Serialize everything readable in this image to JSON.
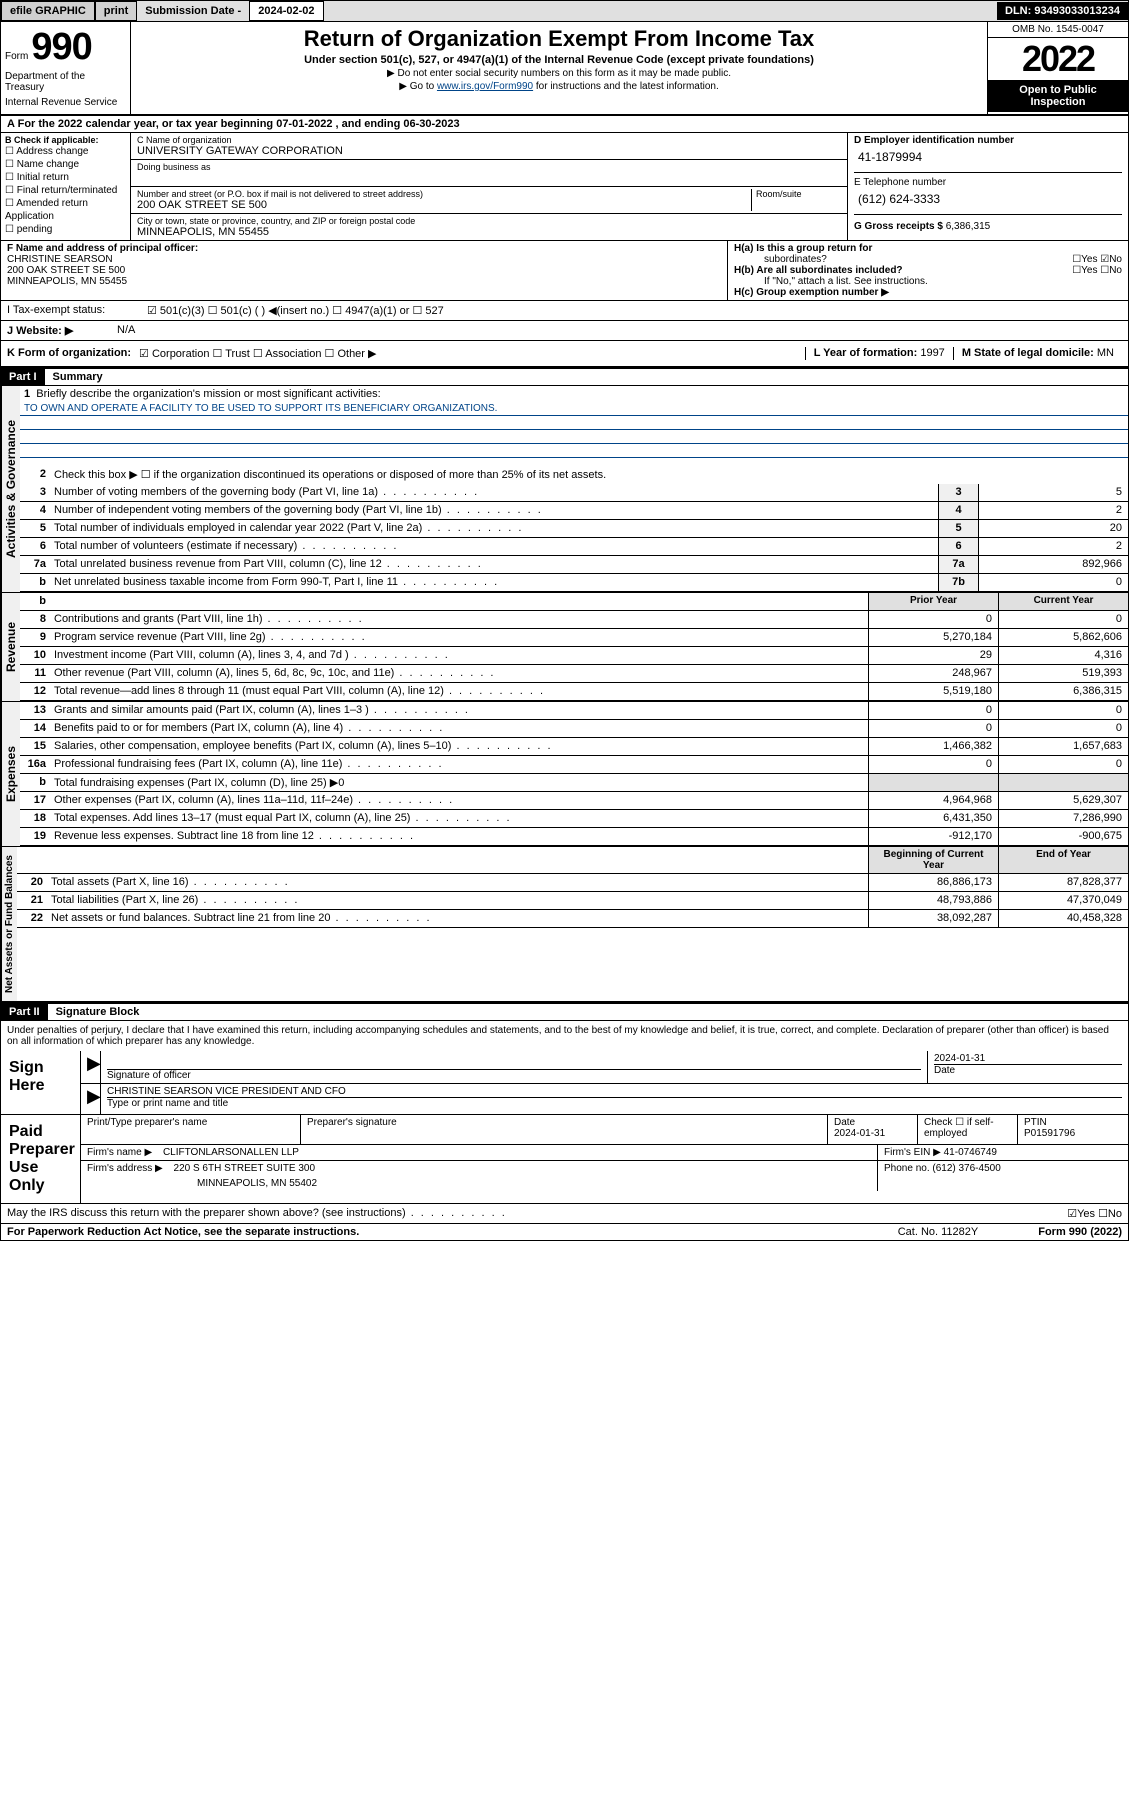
{
  "topbar": {
    "efile": "efile GRAPHIC",
    "print": "print",
    "sub_lbl": "Submission Date - ",
    "sub_date": "2024-02-02",
    "dln": "DLN: 93493033013234"
  },
  "header": {
    "form": "Form",
    "num": "990",
    "dept": "Department of the Treasury",
    "irs": "Internal Revenue Service",
    "title": "Return of Organization Exempt From Income Tax",
    "subtitle": "Under section 501(c), 527, or 4947(a)(1) of the Internal Revenue Code (except private foundations)",
    "note1": "▶ Do not enter social security numbers on this form as it may be made public.",
    "note2a": "▶ Go to ",
    "note2b": "www.irs.gov/Form990",
    "note2c": " for instructions and the latest information.",
    "omb": "OMB No. 1545-0047",
    "year": "2022",
    "inspect": "Open to Public Inspection"
  },
  "line_a": "For the 2022 calendar year, or tax year beginning 07-01-2022   , and ending 06-30-2023",
  "col_b": {
    "lbl": "B Check if applicable:",
    "opts": [
      "☐ Address change",
      "☐ Name change",
      "☐ Initial return",
      "☐ Final return/terminated",
      "☐ Amended return",
      "   Application",
      "☐ pending"
    ]
  },
  "col_c": {
    "name_lbl": "C Name of organization",
    "name": "UNIVERSITY GATEWAY CORPORATION",
    "dba_lbl": "Doing business as",
    "addr_lbl": "Number and street (or P.O. box if mail is not delivered to street address)",
    "addr": "200 OAK STREET SE 500",
    "room_lbl": "Room/suite",
    "city_lbl": "City or town, state or province, country, and ZIP or foreign postal code",
    "city": "MINNEAPOLIS, MN  55455"
  },
  "col_d": {
    "lbl": "D Employer identification number",
    "ein": "41-1879994",
    "tel_lbl": "E Telephone number",
    "tel": "(612) 624-3333",
    "gross_lbl": "G Gross receipts $ ",
    "gross": "6,386,315"
  },
  "f": {
    "lbl": "F  Name and address of principal officer:",
    "name": "CHRISTINE SEARSON",
    "addr1": "200 OAK STREET SE 500",
    "addr2": "MINNEAPOLIS, MN  55455"
  },
  "h": {
    "a": "H(a)  Is this a group return for",
    "a2": "subordinates?",
    "a_ans": "☐Yes ☑No",
    "b": "H(b)  Are all subordinates included?",
    "b_ans": "☐Yes ☐No",
    "b_note": "If \"No,\" attach a list. See instructions.",
    "c": "H(c)  Group exemption number ▶"
  },
  "i": {
    "lbl": "I     Tax-exempt status:",
    "opts": "☑ 501(c)(3)    ☐  501(c) (  ) ◀(insert no.)      ☐ 4947(a)(1) or  ☐ 527"
  },
  "j": {
    "lbl": "J     Website: ▶",
    "val": "N/A"
  },
  "k": {
    "lbl": "K Form of organization:",
    "opts": "☑ Corporation  ☐ Trust  ☐ Association  ☐ Other ▶"
  },
  "l": {
    "lbl": "L Year of formation: ",
    "val": "1997"
  },
  "m": {
    "lbl": "M State of legal domicile: ",
    "val": "MN"
  },
  "parts": {
    "p1_head": "Part I",
    "p1_title": "Summary",
    "p2_head": "Part II",
    "p2_title": "Signature Block"
  },
  "vert": {
    "gov": "Activities & Governance",
    "rev": "Revenue",
    "exp": "Expenses",
    "net": "Net Assets or Fund Balances"
  },
  "summary": {
    "l1": "Briefly describe the organization's mission or most significant activities:",
    "mission": "TO OWN AND OPERATE A FACILITY TO BE USED TO SUPPORT ITS BENEFICIARY ORGANIZATIONS.",
    "l2": "Check this box ▶ ☐ if the organization discontinued its operations or disposed of more than 25% of its net assets.",
    "rows": [
      {
        "n": "3",
        "t": "Number of voting members of the governing body (Part VI, line 1a)",
        "c": "3",
        "v": "5"
      },
      {
        "n": "4",
        "t": "Number of independent voting members of the governing body (Part VI, line 1b)",
        "c": "4",
        "v": "2"
      },
      {
        "n": "5",
        "t": "Total number of individuals employed in calendar year 2022 (Part V, line 2a)",
        "c": "5",
        "v": "20"
      },
      {
        "n": "6",
        "t": "Total number of volunteers (estimate if necessary)",
        "c": "6",
        "v": "2"
      },
      {
        "n": "7a",
        "t": "Total unrelated business revenue from Part VIII, column (C), line 12",
        "c": "7a",
        "v": "892,966"
      },
      {
        "n": "b",
        "t": "Net unrelated business taxable income from Form 990-T, Part I, line 11",
        "c": "7b",
        "v": "0"
      }
    ],
    "prior_hdr": "Prior Year",
    "curr_hdr": "Current Year",
    "rev_rows": [
      {
        "n": "8",
        "t": "Contributions and grants (Part VIII, line 1h)",
        "p": "0",
        "c": "0"
      },
      {
        "n": "9",
        "t": "Program service revenue (Part VIII, line 2g)",
        "p": "5,270,184",
        "c": "5,862,606"
      },
      {
        "n": "10",
        "t": "Investment income (Part VIII, column (A), lines 3, 4, and 7d )",
        "p": "29",
        "c": "4,316"
      },
      {
        "n": "11",
        "t": "Other revenue (Part VIII, column (A), lines 5, 6d, 8c, 9c, 10c, and 11e)",
        "p": "248,967",
        "c": "519,393"
      },
      {
        "n": "12",
        "t": "Total revenue—add lines 8 through 11 (must equal Part VIII, column (A), line 12)",
        "p": "5,519,180",
        "c": "6,386,315"
      }
    ],
    "exp_rows": [
      {
        "n": "13",
        "t": "Grants and similar amounts paid (Part IX, column (A), lines 1–3 )",
        "p": "0",
        "c": "0"
      },
      {
        "n": "14",
        "t": "Benefits paid to or for members (Part IX, column (A), line 4)",
        "p": "0",
        "c": "0"
      },
      {
        "n": "15",
        "t": "Salaries, other compensation, employee benefits (Part IX, column (A), lines 5–10)",
        "p": "1,466,382",
        "c": "1,657,683"
      },
      {
        "n": "16a",
        "t": "Professional fundraising fees (Part IX, column (A), line 11e)",
        "p": "0",
        "c": "0"
      }
    ],
    "l16b": "Total fundraising expenses (Part IX, column (D), line 25) ▶0",
    "exp_rows2": [
      {
        "n": "17",
        "t": "Other expenses (Part IX, column (A), lines 11a–11d, 11f–24e)",
        "p": "4,964,968",
        "c": "5,629,307"
      },
      {
        "n": "18",
        "t": "Total expenses. Add lines 13–17 (must equal Part IX, column (A), line 25)",
        "p": "6,431,350",
        "c": "7,286,990"
      },
      {
        "n": "19",
        "t": "Revenue less expenses. Subtract line 18 from line 12",
        "p": "-912,170",
        "c": "-900,675"
      }
    ],
    "beg_hdr": "Beginning of Current Year",
    "end_hdr": "End of Year",
    "net_rows": [
      {
        "n": "20",
        "t": "Total assets (Part X, line 16)",
        "p": "86,886,173",
        "c": "87,828,377"
      },
      {
        "n": "21",
        "t": "Total liabilities (Part X, line 26)",
        "p": "48,793,886",
        "c": "47,370,049"
      },
      {
        "n": "22",
        "t": "Net assets or fund balances. Subtract line 21 from line 20",
        "p": "38,092,287",
        "c": "40,458,328"
      }
    ]
  },
  "penalties": "Under penalties of perjury, I declare that I have examined this return, including accompanying schedules and statements, and to the best of my knowledge and belief, it is true, correct, and complete. Declaration of preparer (other than officer) is based on all information of which preparer has any knowledge.",
  "sign": {
    "lbl": "Sign Here",
    "sig_lbl": "Signature of officer",
    "date": "2024-01-31",
    "date_lbl": "Date",
    "name": "CHRISTINE SEARSON  VICE PRESIDENT AND CFO",
    "name_lbl": "Type or print name and title"
  },
  "prep": {
    "lbl": "Paid Preparer Use Only",
    "print_lbl": "Print/Type preparer's name",
    "sig_lbl": "Preparer's signature",
    "date_lbl": "Date",
    "date": "2024-01-31",
    "check_lbl": "Check ☐ if self-employed",
    "ptin_lbl": "PTIN",
    "ptin": "P01591796",
    "firm_lbl": "Firm's name    ▶",
    "firm": "CLIFTONLARSONALLEN LLP",
    "ein_lbl": "Firm's EIN ▶",
    "ein": "41-0746749",
    "addr_lbl": "Firm's address ▶",
    "addr1": "220 S 6TH STREET SUITE 300",
    "addr2": "MINNEAPOLIS, MN  55402",
    "phone_lbl": "Phone no. ",
    "phone": "(612) 376-4500"
  },
  "discuss": "May the IRS discuss this return with the preparer shown above? (see instructions)",
  "discuss_ans": "☑Yes ☐No",
  "footer": {
    "l": "For Paperwork Reduction Act Notice, see the separate instructions.",
    "c": "Cat. No. 11282Y",
    "r": "Form 990 (2022)"
  }
}
